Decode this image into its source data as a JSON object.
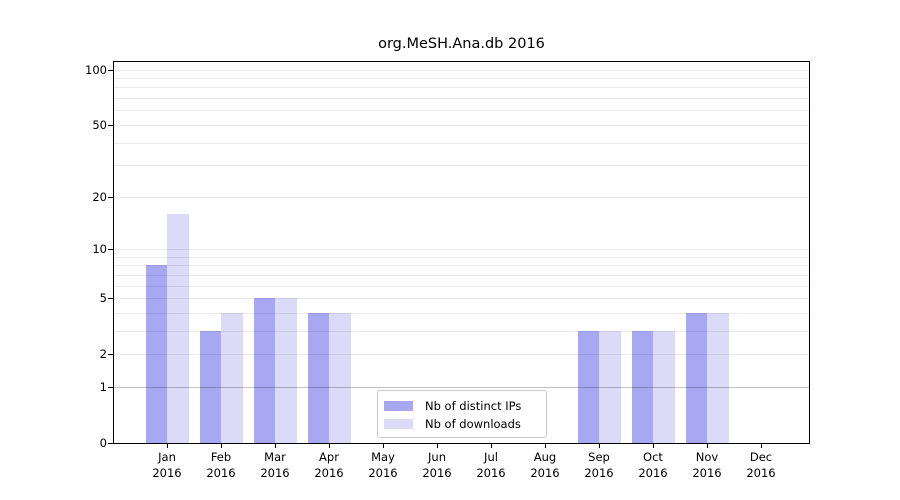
{
  "title": "org.MeSH.Ana.db 2016",
  "chart_data": {
    "type": "bar",
    "title": "org.MeSH.Ana.db 2016",
    "categories": [
      "Jan 2016",
      "Feb 2016",
      "Mar 2016",
      "Apr 2016",
      "May 2016",
      "Jun 2016",
      "Jul 2016",
      "Aug 2016",
      "Sep 2016",
      "Oct 2016",
      "Nov 2016",
      "Dec 2016"
    ],
    "series": [
      {
        "name": "Nb of distinct IPs",
        "color": "#a7a7f2",
        "values": [
          8,
          3,
          5,
          4,
          0,
          0,
          0,
          0,
          3,
          3,
          4,
          0
        ]
      },
      {
        "name": "Nb of downloads",
        "color": "#dbdbf8",
        "values": [
          16,
          4,
          5,
          4,
          0,
          0,
          0,
          0,
          3,
          3,
          4,
          0
        ]
      }
    ],
    "yscale": "log10(1+y)",
    "ylim": [
      0,
      110
    ],
    "yticks": [
      100,
      50,
      20,
      10,
      5,
      2,
      1,
      0
    ],
    "minor_gridlines": [
      2,
      3,
      4,
      5,
      6,
      7,
      8,
      9,
      10,
      20,
      30,
      40,
      50,
      60,
      70,
      80,
      90,
      100
    ],
    "emphasized_gridline": 1,
    "grid": "horizontal",
    "legend_position": "inside bottom-center"
  },
  "colors": {
    "bar_dark": "#a7a7f2",
    "bar_light": "#dbdbf8",
    "gridline": "rgba(0,0,0,0.08)",
    "gridline_emphasized": "rgba(0,0,0,0.24)",
    "spine": "#000000",
    "legend_border": "#c9c9c9"
  }
}
